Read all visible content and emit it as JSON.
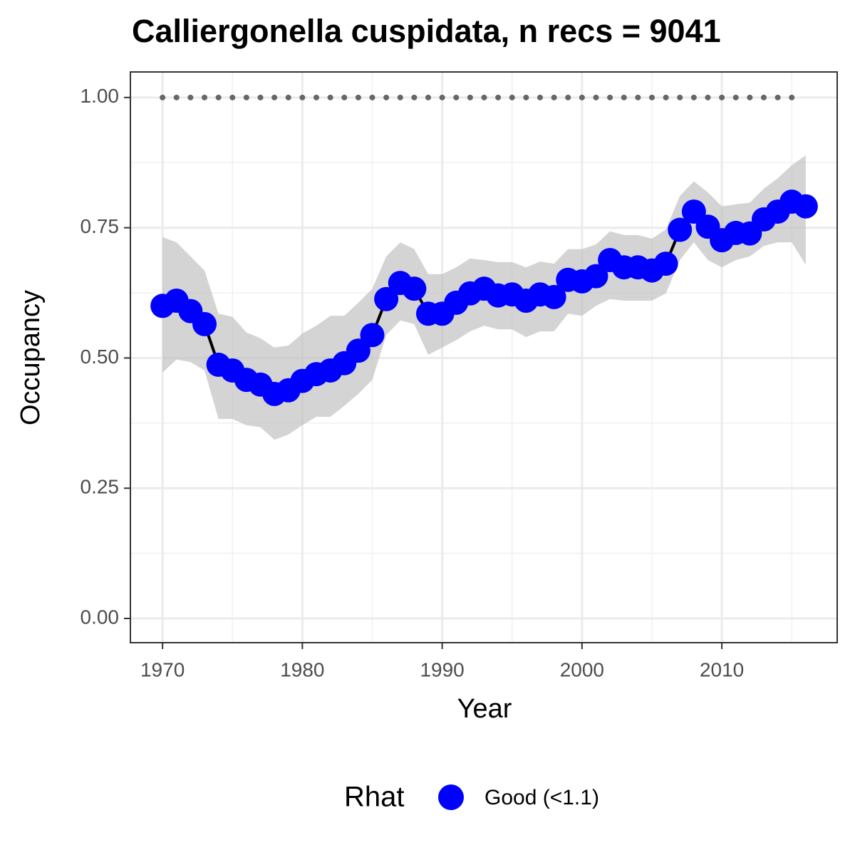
{
  "chart_data": {
    "type": "line",
    "title": "Calliergonella cuspidata, n recs = 9041",
    "x_label": "Year",
    "y_label": "Occupancy",
    "legend_title": "Rhat",
    "x": [
      1970,
      1971,
      1972,
      1973,
      1974,
      1975,
      1976,
      1977,
      1978,
      1979,
      1980,
      1981,
      1982,
      1983,
      1984,
      1985,
      1986,
      1987,
      1988,
      1989,
      1990,
      1991,
      1992,
      1993,
      1994,
      1995,
      1996,
      1997,
      1998,
      1999,
      2000,
      2001,
      2002,
      2003,
      2004,
      2005,
      2006,
      2007,
      2008,
      2009,
      2010,
      2011,
      2012,
      2013,
      2014,
      2015,
      2016
    ],
    "series": [
      {
        "name": "Good (<1.1)",
        "color": "#0000ff",
        "line_color": "#000000",
        "band_color": "#bdbdbd",
        "values": [
          0.6,
          0.61,
          0.59,
          0.565,
          0.487,
          0.476,
          0.458,
          0.449,
          0.431,
          0.438,
          0.456,
          0.469,
          0.476,
          0.49,
          0.514,
          0.544,
          0.613,
          0.644,
          0.633,
          0.585,
          0.585,
          0.606,
          0.624,
          0.633,
          0.62,
          0.622,
          0.61,
          0.622,
          0.617,
          0.65,
          0.647,
          0.657,
          0.688,
          0.674,
          0.674,
          0.668,
          0.681,
          0.746,
          0.781,
          0.752,
          0.726,
          0.74,
          0.739,
          0.766,
          0.781,
          0.8,
          0.791
        ],
        "upper": [
          0.732,
          0.722,
          0.695,
          0.668,
          0.585,
          0.579,
          0.549,
          0.538,
          0.52,
          0.524,
          0.547,
          0.562,
          0.581,
          0.581,
          0.606,
          0.633,
          0.695,
          0.722,
          0.709,
          0.661,
          0.661,
          0.674,
          0.691,
          0.688,
          0.684,
          0.684,
          0.674,
          0.685,
          0.681,
          0.709,
          0.709,
          0.718,
          0.743,
          0.736,
          0.736,
          0.729,
          0.747,
          0.811,
          0.839,
          0.818,
          0.791,
          0.795,
          0.798,
          0.825,
          0.845,
          0.87,
          0.889
        ],
        "lower": [
          0.472,
          0.497,
          0.492,
          0.476,
          0.383,
          0.383,
          0.371,
          0.367,
          0.343,
          0.353,
          0.371,
          0.387,
          0.387,
          0.408,
          0.431,
          0.458,
          0.544,
          0.572,
          0.565,
          0.506,
          0.52,
          0.534,
          0.551,
          0.562,
          0.555,
          0.555,
          0.54,
          0.551,
          0.551,
          0.585,
          0.581,
          0.6,
          0.613,
          0.61,
          0.61,
          0.61,
          0.624,
          0.688,
          0.722,
          0.688,
          0.674,
          0.688,
          0.695,
          0.715,
          0.722,
          0.722,
          0.679
        ]
      }
    ],
    "reference": {
      "color": "#666666",
      "x": [
        1970,
        1971,
        1972,
        1973,
        1974,
        1975,
        1976,
        1977,
        1978,
        1979,
        1980,
        1981,
        1982,
        1983,
        1984,
        1985,
        1986,
        1987,
        1988,
        1989,
        1990,
        1991,
        1992,
        1993,
        1994,
        1995,
        1996,
        1997,
        1998,
        1999,
        2000,
        2001,
        2002,
        2003,
        2004,
        2005,
        2006,
        2007,
        2008,
        2009,
        2010,
        2011,
        2012,
        2013,
        2014,
        2015
      ],
      "values": [
        1,
        1,
        1,
        1,
        1,
        1,
        1,
        1,
        1,
        1,
        1,
        1,
        1,
        1,
        1,
        1,
        1,
        1,
        1,
        1,
        1,
        1,
        1,
        1,
        1,
        1,
        1,
        1,
        1,
        1,
        1,
        1,
        1,
        1,
        1,
        1,
        1,
        1,
        1,
        1,
        1,
        1,
        1,
        1,
        1,
        1
      ]
    },
    "xlim": [
      1967.7,
      2018.25
    ],
    "ylim": [
      -0.0465,
      1.049
    ],
    "xticks": [
      1970,
      1980,
      1990,
      2000,
      2010
    ],
    "yticks": [
      {
        "value": 0,
        "label": "0.00"
      },
      0.25,
      {
        "value": 0.5,
        "label": "0.50"
      },
      0.75,
      {
        "value": 1,
        "label": "1.00"
      }
    ],
    "xminor": [
      1975,
      1985,
      1995,
      2005,
      2015
    ],
    "yminor": [
      0.125,
      0.375,
      0.625,
      0.875
    ],
    "grid": true
  }
}
